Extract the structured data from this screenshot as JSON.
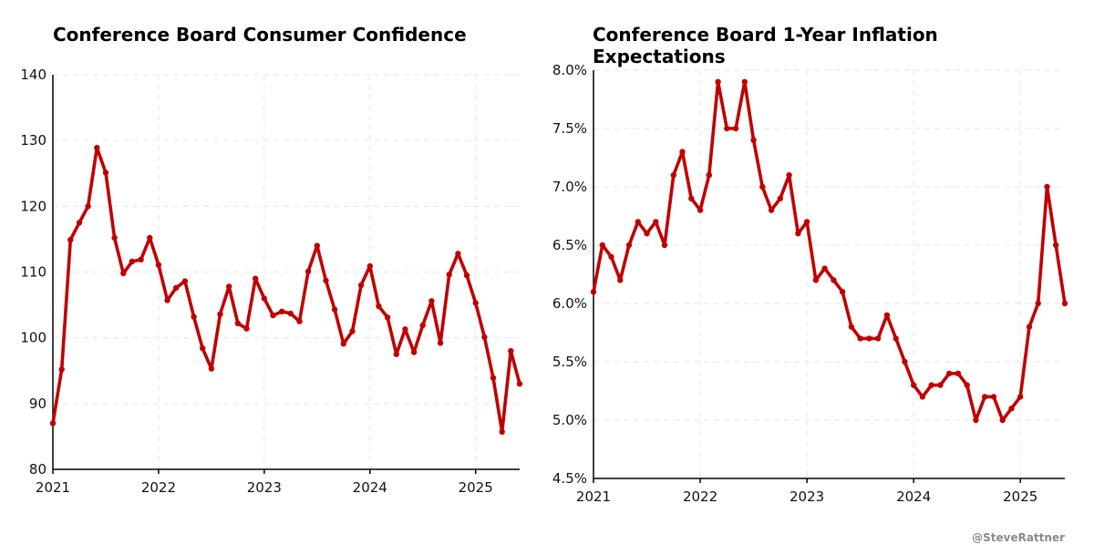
{
  "credit": "@SteveRattner",
  "colors": {
    "series": "#c00000",
    "grid": "#e6e6e6",
    "axis": "#000000"
  },
  "chart_data": [
    {
      "type": "line",
      "title": "Conference Board Consumer Confidence",
      "title_lines": [
        "Conference Board Consumer Confidence"
      ],
      "xlabel": "",
      "ylabel": "",
      "ylim": [
        80,
        140
      ],
      "xlim": [
        2021.0,
        2025.4167
      ],
      "yticks": [
        80,
        90,
        100,
        110,
        120,
        130,
        140
      ],
      "ytick_labels": [
        "80",
        "90",
        "100",
        "110",
        "120",
        "130",
        "140"
      ],
      "xticks": [
        2021,
        2022,
        2023,
        2024,
        2025
      ],
      "xtick_labels": [
        "2021",
        "2022",
        "2023",
        "2024",
        "2025"
      ],
      "grid": true,
      "start": "2021-01",
      "series": [
        {
          "values": [
            87,
            95.2,
            114.9,
            117.5,
            120,
            128.9,
            125.1,
            115.2,
            109.8,
            111.6,
            111.9,
            115.2,
            111.1,
            105.7,
            107.6,
            108.6,
            103.2,
            98.4,
            95.3,
            103.6,
            107.8,
            102.2,
            101.4,
            109,
            106,
            103.4,
            104,
            103.7,
            102.5,
            110.1,
            114,
            108.7,
            104.3,
            99.1,
            101,
            108,
            110.9,
            104.8,
            103.1,
            97.5,
            101.3,
            97.8,
            101.9,
            105.6,
            99.2,
            109.6,
            112.8,
            109.5,
            105.3,
            100.1,
            93.9,
            85.7,
            98,
            93
          ]
        }
      ]
    },
    {
      "type": "line",
      "title": "Conference Board 1-Year Inflation Expectations",
      "title_lines": [
        "Conference Board 1-Year Inflation",
        "Expectations"
      ],
      "xlabel": "",
      "ylabel": "",
      "ylim": [
        4.5,
        8.0
      ],
      "xlim": [
        2021.0,
        2025.4167
      ],
      "yticks": [
        4.5,
        5.0,
        5.5,
        6.0,
        6.5,
        7.0,
        7.5,
        8.0
      ],
      "ytick_labels": [
        "4.5%",
        "5.0%",
        "5.5%",
        "6.0%",
        "6.5%",
        "7.0%",
        "7.5%",
        "8.0%"
      ],
      "xticks": [
        2021,
        2022,
        2023,
        2024,
        2025
      ],
      "xtick_labels": [
        "2021",
        "2022",
        "2023",
        "2024",
        "2025"
      ],
      "grid": true,
      "start": "2021-01",
      "series": [
        {
          "values": [
            6.1,
            6.5,
            6.4,
            6.2,
            6.5,
            6.7,
            6.6,
            6.7,
            6.5,
            7.1,
            7.3,
            6.9,
            6.8,
            7.1,
            7.9,
            7.5,
            7.5,
            7.9,
            7.4,
            7.0,
            6.8,
            6.9,
            7.1,
            6.6,
            6.7,
            6.2,
            6.3,
            6.2,
            6.1,
            5.8,
            5.7,
            5.7,
            5.7,
            5.9,
            5.7,
            5.5,
            5.3,
            5.2,
            5.3,
            5.3,
            5.4,
            5.4,
            5.3,
            5.0,
            5.2,
            5.2,
            5.0,
            5.1,
            5.2,
            5.8,
            6.0,
            7.0,
            6.5,
            6.0
          ]
        }
      ]
    }
  ]
}
